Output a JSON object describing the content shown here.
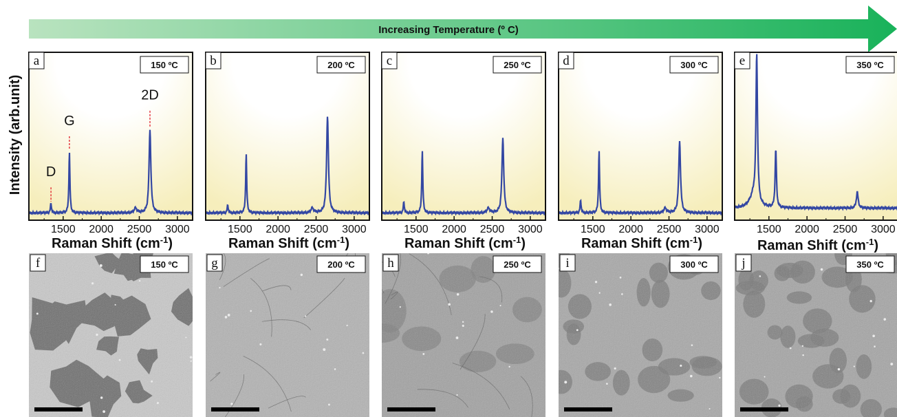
{
  "banner": {
    "label": "Increasing Temperature (º C)",
    "color_start": "#b9e3bf",
    "color_end": "#19b25a"
  },
  "y_axis_label": "Intensity (arb.unit)",
  "x_axis_label_main": "Raman Shift (cm",
  "x_axis_label_sup": "-1",
  "x_axis_label_close": ")",
  "x_ticks": [
    "1500",
    "2000",
    "2500",
    "3000"
  ],
  "peak_labels": [
    "D",
    "G",
    "2D"
  ],
  "line_color": "#3347a3",
  "marker_color": "#e0202a",
  "chart_data": [
    {
      "type": "line",
      "letter": "a",
      "temperature": "150 ºC",
      "xlabel": "Raman Shift (cm-1)",
      "ylabel": "Intensity (arb.unit)",
      "xlim": [
        1050,
        3200
      ],
      "ylim": [
        0,
        1
      ],
      "baseline": 0.02,
      "peaks": [
        {
          "name": "D",
          "x": 1340,
          "y": 0.06
        },
        {
          "name": "G",
          "x": 1582,
          "y": 0.38
        },
        {
          "name": "2D-shoulder",
          "x": 2450,
          "y": 0.03
        },
        {
          "name": "2D",
          "x": 2640,
          "y": 0.52
        }
      ]
    },
    {
      "type": "line",
      "letter": "b",
      "temperature": "200 ºC",
      "xlabel": "Raman Shift (cm-1)",
      "xlim": [
        1050,
        3200
      ],
      "ylim": [
        0,
        1
      ],
      "baseline": 0.02,
      "peaks": [
        {
          "name": "D",
          "x": 1340,
          "y": 0.05
        },
        {
          "name": "G",
          "x": 1582,
          "y": 0.37
        },
        {
          "name": "2D-shoulder",
          "x": 2450,
          "y": 0.03
        },
        {
          "name": "2D",
          "x": 2650,
          "y": 0.61
        }
      ]
    },
    {
      "type": "line",
      "letter": "c",
      "temperature": "250 ºC",
      "xlabel": "Raman Shift (cm-1)",
      "xlim": [
        1050,
        3200
      ],
      "ylim": [
        0,
        1
      ],
      "baseline": 0.02,
      "peaks": [
        {
          "name": "D",
          "x": 1340,
          "y": 0.07
        },
        {
          "name": "G",
          "x": 1582,
          "y": 0.39
        },
        {
          "name": "2D-shoulder",
          "x": 2450,
          "y": 0.03
        },
        {
          "name": "2D",
          "x": 2640,
          "y": 0.47
        }
      ]
    },
    {
      "type": "line",
      "letter": "d",
      "temperature": "300 ºC",
      "xlabel": "Raman Shift (cm-1)",
      "xlim": [
        1050,
        3200
      ],
      "ylim": [
        0,
        1
      ],
      "baseline": 0.02,
      "peaks": [
        {
          "name": "D",
          "x": 1340,
          "y": 0.08
        },
        {
          "name": "G",
          "x": 1582,
          "y": 0.39
        },
        {
          "name": "2D-shoulder",
          "x": 2450,
          "y": 0.03
        },
        {
          "name": "2D",
          "x": 2640,
          "y": 0.45
        }
      ]
    },
    {
      "type": "line",
      "letter": "e",
      "temperature": "350 ºC",
      "xlabel": "Raman Shift (cm-1)",
      "xlim": [
        1050,
        3200
      ],
      "ylim": [
        0,
        1
      ],
      "baseline": 0.05,
      "peaks": [
        {
          "name": "D",
          "x": 1340,
          "y": 0.92
        },
        {
          "name": "D-wing",
          "x": 1300,
          "y": 0.08
        },
        {
          "name": "G",
          "x": 1590,
          "y": 0.37
        },
        {
          "name": "2D",
          "x": 2660,
          "y": 0.1
        }
      ]
    }
  ],
  "sem_panels": [
    {
      "letter": "f",
      "temperature": "150 ºC",
      "pattern": "islands"
    },
    {
      "letter": "g",
      "temperature": "200 ºC",
      "pattern": "continuous"
    },
    {
      "letter": "h",
      "temperature": "250 ºC",
      "pattern": "cracked"
    },
    {
      "letter": "i",
      "temperature": "300 ºC",
      "pattern": "spots"
    },
    {
      "letter": "j",
      "temperature": "350 ºC",
      "pattern": "dense-spots"
    }
  ]
}
